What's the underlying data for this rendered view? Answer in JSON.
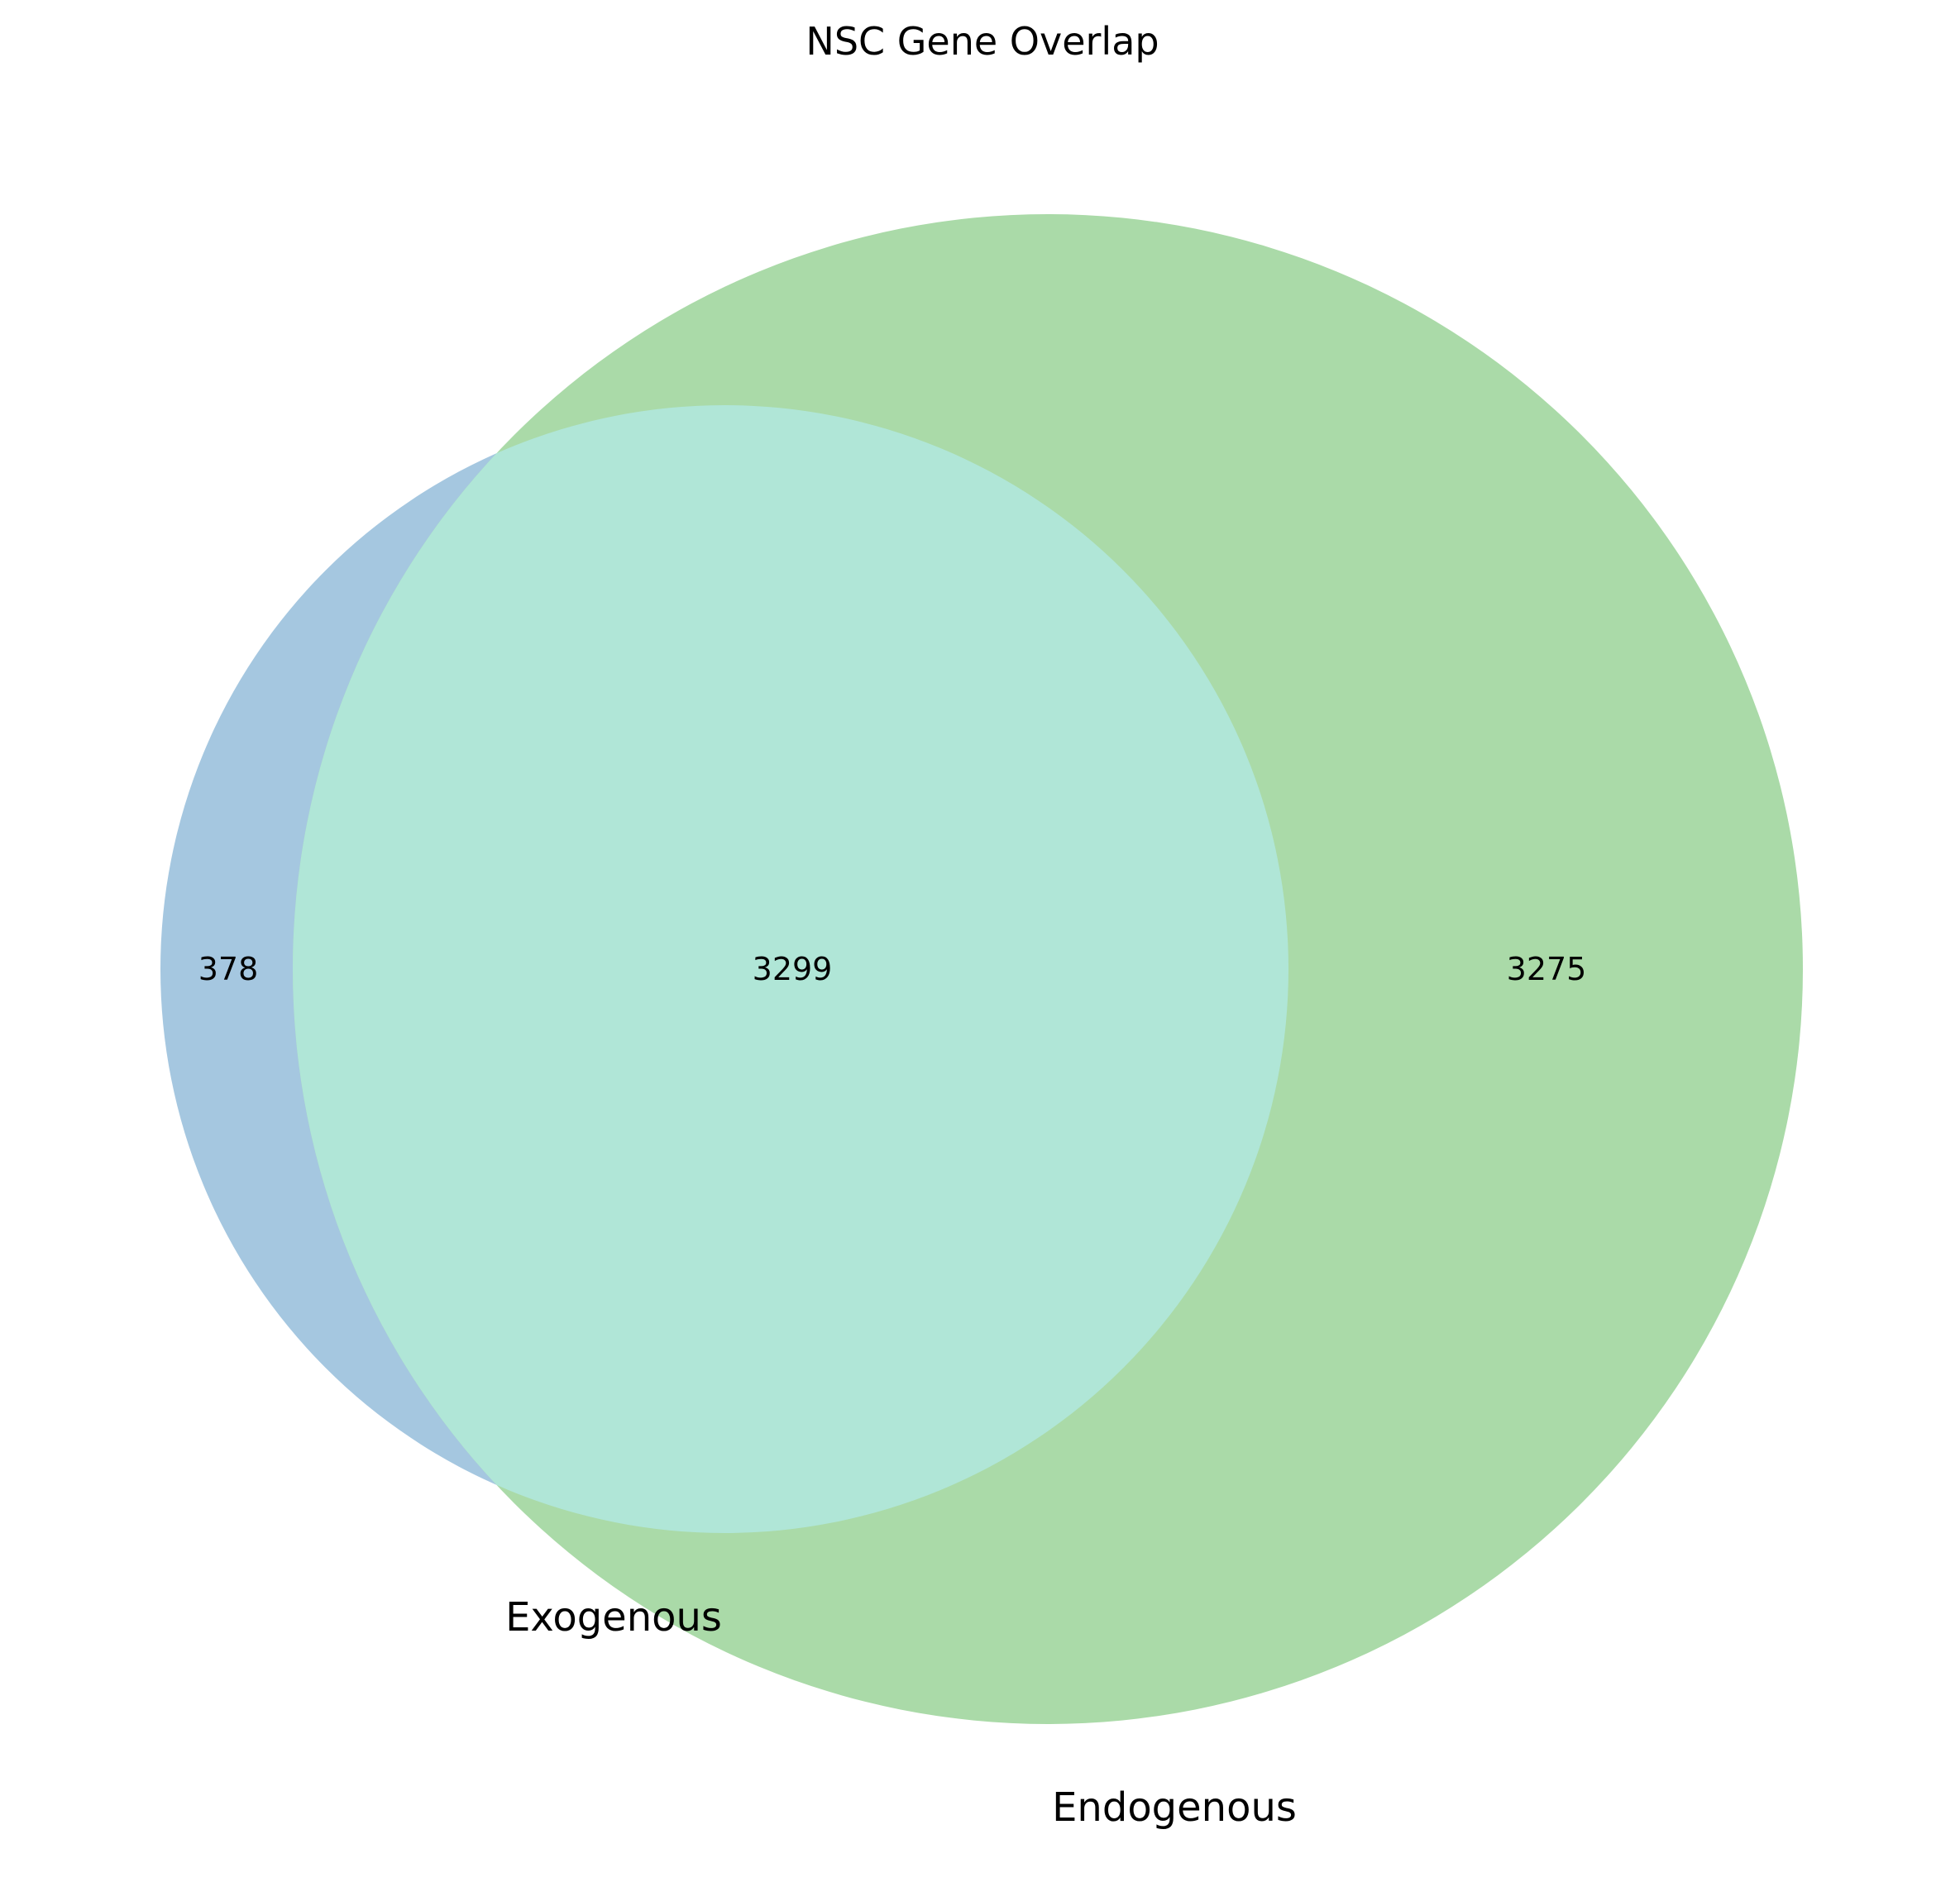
{
  "title": "NSC Gene Overlap",
  "sets": [
    {
      "name": "Exogenous",
      "color": "#a5c7e0"
    },
    {
      "name": "Endogenous",
      "color": "#aadaa8"
    }
  ],
  "intersection_color": "#b0e6d7",
  "regions": {
    "exogenous_only": "378",
    "both": "3299",
    "endogenous_only": "3275"
  },
  "chart_data": {
    "type": "venn",
    "title": "NSC Gene Overlap",
    "sets": [
      "Exogenous",
      "Endogenous"
    ],
    "values": {
      "Exogenous only": 378,
      "Exogenous & Endogenous": 3299,
      "Endogenous only": 3275
    }
  }
}
